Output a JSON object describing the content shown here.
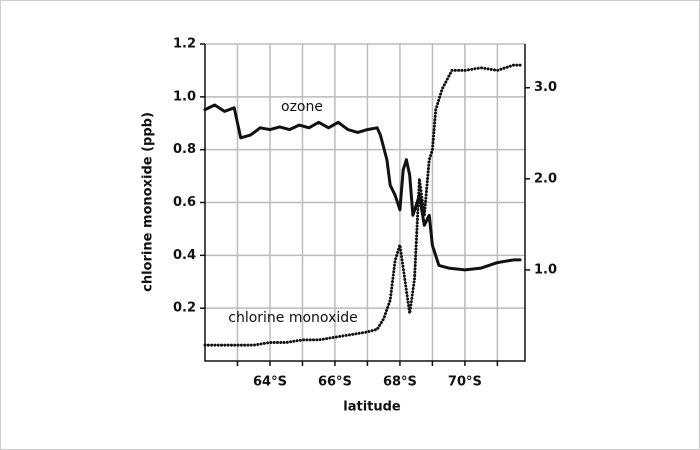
{
  "chart_data": {
    "type": "line",
    "xlabel": "latitude",
    "ylabel": "chlorine monoxide (ppb)",
    "xlim": [
      62,
      71.85
    ],
    "xticks": [
      {
        "value": 64,
        "label": "64°S"
      },
      {
        "value": 66,
        "label": "66°S"
      },
      {
        "value": 68,
        "label": "68°S"
      },
      {
        "value": 70,
        "label": "70°S"
      }
    ],
    "xminorticks": [
      63,
      65,
      67,
      69,
      71
    ],
    "ylim": [
      0,
      1.2
    ],
    "yticks": [
      0.2,
      0.4,
      0.6,
      0.8,
      {
        "value": 1,
        "label": "1.0"
      },
      1.2
    ],
    "y2lim": [
      0,
      3.48
    ],
    "y2ticks": [
      {
        "value": 1,
        "label": "1.0"
      },
      {
        "value": 2,
        "label": "2.0"
      },
      {
        "value": 3,
        "label": "3.0"
      }
    ],
    "grid": true,
    "series": [
      {
        "name": "ozone",
        "color": "#111111",
        "axis": "y2",
        "style": "solid",
        "x": [
          62.0,
          62.3,
          62.6,
          62.9,
          63.1,
          63.4,
          63.7,
          64.0,
          64.3,
          64.6,
          64.9,
          65.2,
          65.5,
          65.8,
          66.1,
          66.4,
          66.7,
          67.0,
          67.3,
          67.4,
          67.6,
          67.7,
          67.85,
          68.0,
          68.1,
          68.2,
          68.3,
          68.4,
          68.5,
          68.6,
          68.75,
          68.9,
          69.0,
          69.2,
          69.5,
          70.0,
          70.5,
          71.0,
          71.5,
          71.7
        ],
        "values": [
          2.76,
          2.81,
          2.74,
          2.78,
          2.45,
          2.48,
          2.56,
          2.54,
          2.57,
          2.54,
          2.59,
          2.56,
          2.62,
          2.56,
          2.62,
          2.54,
          2.51,
          2.54,
          2.56,
          2.48,
          2.21,
          1.93,
          1.82,
          1.66,
          2.1,
          2.21,
          2.04,
          1.6,
          1.71,
          1.82,
          1.49,
          1.6,
          1.27,
          1.05,
          1.02,
          1.0,
          1.02,
          1.08,
          1.11,
          1.11
        ]
      },
      {
        "name": "chlorine monoxide",
        "color": "#111111",
        "axis": "y",
        "style": "dotted",
        "x": [
          62.0,
          62.5,
          63.0,
          63.5,
          64.0,
          64.5,
          65.0,
          65.5,
          66.0,
          66.5,
          67.0,
          67.3,
          67.5,
          67.7,
          67.85,
          68.0,
          68.15,
          68.3,
          68.45,
          68.6,
          68.75,
          68.9,
          69.0,
          69.1,
          69.3,
          69.6,
          70.0,
          70.5,
          71.0,
          71.5,
          71.7
        ],
        "values": [
          0.06,
          0.06,
          0.06,
          0.06,
          0.07,
          0.07,
          0.08,
          0.08,
          0.09,
          0.1,
          0.11,
          0.12,
          0.16,
          0.23,
          0.38,
          0.44,
          0.31,
          0.18,
          0.31,
          0.69,
          0.55,
          0.76,
          0.8,
          0.95,
          1.03,
          1.1,
          1.1,
          1.11,
          1.1,
          1.12,
          1.12
        ]
      }
    ]
  }
}
